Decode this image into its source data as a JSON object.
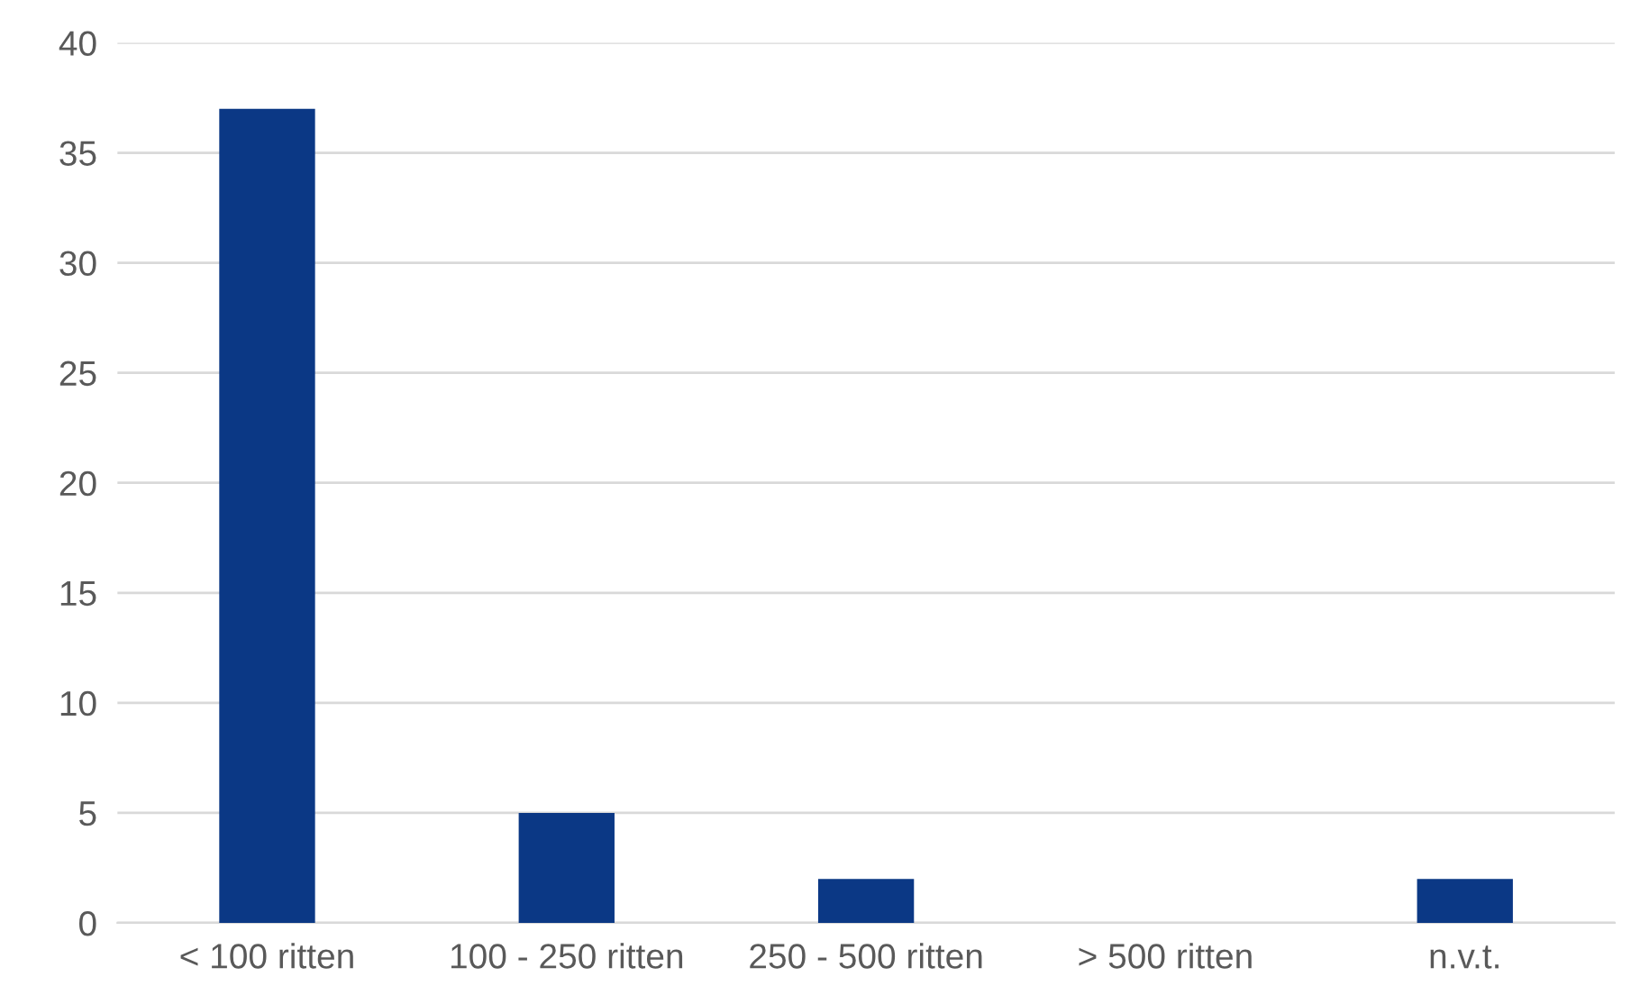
{
  "chart_data": {
    "type": "bar",
    "categories": [
      "< 100 ritten",
      "100 - 250 ritten",
      "250 - 500 ritten",
      "> 500 ritten",
      "n.v.t."
    ],
    "values": [
      37,
      5,
      2,
      0,
      2
    ],
    "color": "#0b3885",
    "ylim": [
      0,
      40
    ],
    "yticks": [
      0,
      5,
      10,
      15,
      20,
      25,
      30,
      35,
      40
    ],
    "grid": "y",
    "legend": false
  }
}
